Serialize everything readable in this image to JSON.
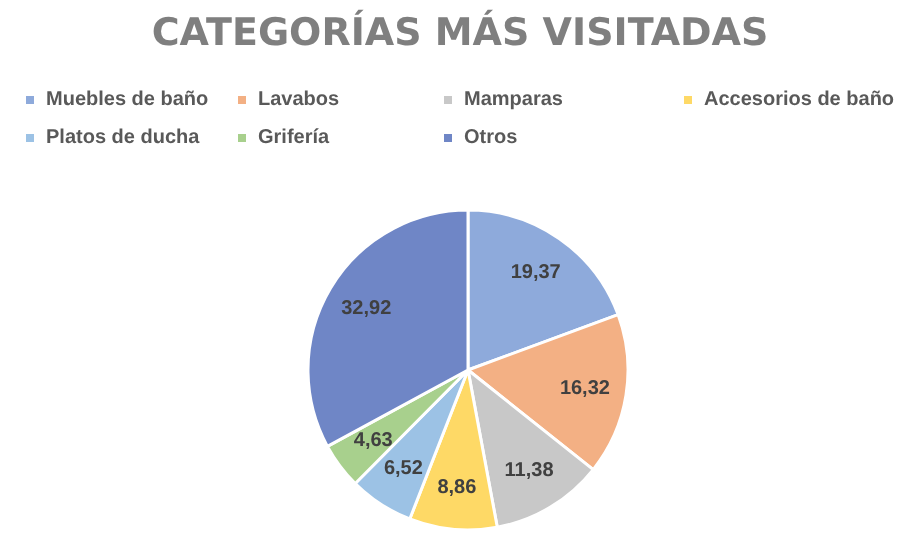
{
  "chart_data": {
    "type": "pie",
    "title": "CATEGORÍAS MÁS VISITADAS",
    "categories": [
      "Muebles de baño",
      "Lavabos",
      "Mamparas",
      "Accesorios de baño",
      "Platos de ducha",
      "Grifería",
      "Otros"
    ],
    "values": [
      19.37,
      16.32,
      11.38,
      8.86,
      6.52,
      4.63,
      32.92
    ],
    "value_labels": [
      "19,37",
      "16,32",
      "11,38",
      "8,86",
      "6,52",
      "4,63",
      "32,92"
    ],
    "colors": [
      "#8eaadb",
      "#f3b084",
      "#c8c8c8",
      "#fed966",
      "#9cc2e5",
      "#a8d08d",
      "#6f86c6"
    ],
    "legend": "top"
  }
}
